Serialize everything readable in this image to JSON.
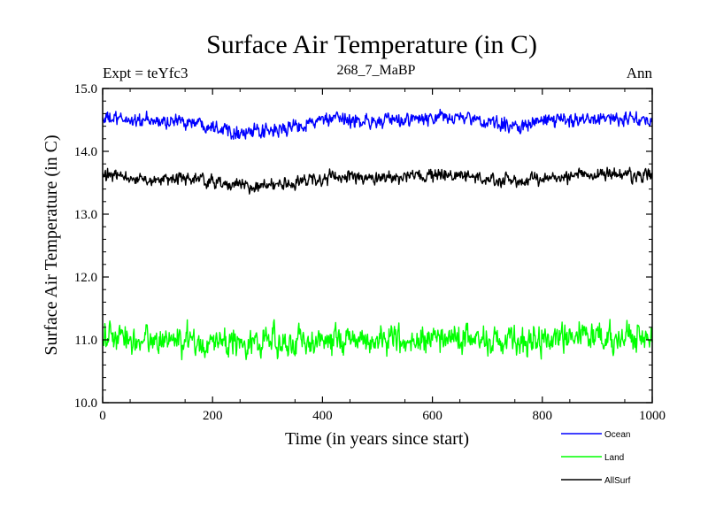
{
  "chart_data": {
    "type": "line",
    "title": "Surface Air Temperature (in C)",
    "subtitle_left": "Expt = teYfc3",
    "subtitle_center": "268_7_MaBP",
    "subtitle_right": "Ann",
    "xlabel": "Time (in years since start)",
    "ylabel": "Surface Air Temperature (in C)",
    "xlim": [
      0,
      1000
    ],
    "ylim": [
      10.0,
      15.0
    ],
    "x_ticks": [
      0,
      200,
      400,
      600,
      800,
      1000
    ],
    "x_tick_labels": [
      "0",
      "200",
      "400",
      "600",
      "800",
      "1000"
    ],
    "y_ticks": [
      10,
      11,
      12,
      13,
      14,
      15
    ],
    "y_tick_labels": [
      "10.0",
      "11.0",
      "12.0",
      "13.0",
      "14.0",
      "15.0"
    ],
    "legend_position": "bottom-right, outside plot",
    "series": [
      {
        "name": "Ocean",
        "color": "#0000ff",
        "x": [
          0,
          50,
          100,
          150,
          200,
          250,
          300,
          350,
          400,
          450,
          500,
          550,
          600,
          650,
          700,
          750,
          800,
          850,
          900,
          950,
          1000
        ],
        "values": [
          14.52,
          14.5,
          14.47,
          14.48,
          14.42,
          14.3,
          14.3,
          14.4,
          14.5,
          14.5,
          14.47,
          14.5,
          14.52,
          14.55,
          14.45,
          14.4,
          14.48,
          14.5,
          14.55,
          14.5,
          14.5
        ],
        "noise": 0.08
      },
      {
        "name": "Land",
        "color": "#00ff00",
        "x": [
          0,
          50,
          100,
          150,
          200,
          250,
          300,
          350,
          400,
          450,
          500,
          550,
          600,
          650,
          700,
          750,
          800,
          850,
          900,
          950,
          1000
        ],
        "values": [
          11.05,
          11.0,
          11.0,
          10.97,
          10.95,
          10.97,
          10.97,
          10.97,
          11.0,
          11.0,
          11.0,
          11.0,
          11.0,
          11.02,
          11.0,
          11.0,
          11.0,
          11.05,
          11.05,
          11.02,
          11.02
        ],
        "noise": 0.16
      },
      {
        "name": "AllSurf",
        "color": "#000000",
        "x": [
          0,
          50,
          100,
          150,
          200,
          250,
          300,
          350,
          400,
          450,
          500,
          550,
          600,
          650,
          700,
          750,
          800,
          850,
          900,
          950,
          1000
        ],
        "values": [
          13.62,
          13.57,
          13.55,
          13.57,
          13.52,
          13.45,
          13.45,
          13.5,
          13.57,
          13.6,
          13.57,
          13.58,
          13.6,
          13.62,
          13.55,
          13.52,
          13.57,
          13.6,
          13.65,
          13.62,
          13.6
        ],
        "noise": 0.07
      }
    ]
  }
}
